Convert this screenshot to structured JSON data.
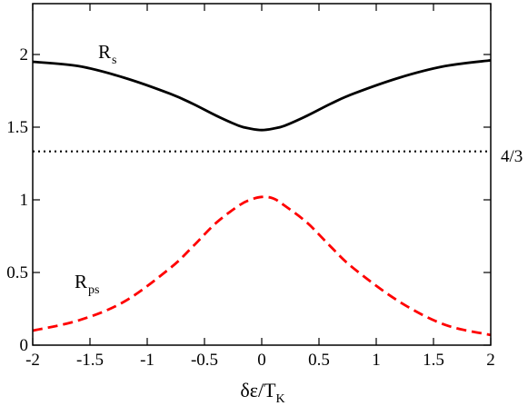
{
  "chart_data": {
    "type": "line",
    "title": "",
    "xlabel": {
      "main": "δε/T",
      "sub": "K"
    },
    "ylabel": "",
    "xlim": [
      -2,
      2
    ],
    "ylim": [
      0,
      2.35
    ],
    "x_ticks": [
      -2,
      -1.5,
      -1,
      -0.5,
      0,
      0.5,
      1,
      1.5,
      2
    ],
    "x_tick_labels": [
      "-2",
      "-1.5",
      "-1",
      "-0.5",
      "0",
      "0.5",
      "1",
      "1.5",
      "2"
    ],
    "y_ticks": [
      0,
      0.5,
      1,
      1.5,
      2
    ],
    "y_tick_labels": [
      "0",
      "0.5",
      "1",
      "1.5",
      "2"
    ],
    "grid": false,
    "series": [
      {
        "name": {
          "main": "R",
          "sub": "s"
        },
        "color": "#000000",
        "style": "solid",
        "x": [
          -2,
          -1.6,
          -1.2,
          -0.8,
          -0.6,
          -0.4,
          -0.2,
          -0.1,
          0,
          0.1,
          0.2,
          0.4,
          0.6,
          0.8,
          1.2,
          1.6,
          2
        ],
        "y": [
          1.95,
          1.92,
          1.84,
          1.73,
          1.66,
          1.58,
          1.51,
          1.49,
          1.48,
          1.49,
          1.51,
          1.58,
          1.66,
          1.73,
          1.84,
          1.92,
          1.96
        ]
      },
      {
        "name": {
          "main": "R",
          "sub": "ps"
        },
        "color": "#ff0000",
        "style": "dashed",
        "x": [
          -2,
          -1.6,
          -1.2,
          -0.8,
          -0.6,
          -0.4,
          -0.2,
          -0.1,
          0,
          0.1,
          0.2,
          0.4,
          0.6,
          0.8,
          1.2,
          1.6,
          2
        ],
        "y": [
          0.1,
          0.17,
          0.3,
          0.53,
          0.68,
          0.84,
          0.96,
          1.0,
          1.02,
          1.01,
          0.96,
          0.84,
          0.68,
          0.53,
          0.3,
          0.14,
          0.07
        ]
      }
    ],
    "reference_line": {
      "y": 1.3333,
      "label": "4/3",
      "style": "dotted",
      "color": "#000000"
    }
  }
}
